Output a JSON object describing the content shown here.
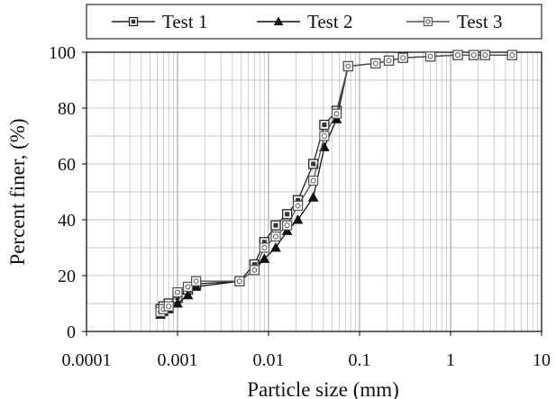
{
  "chart_data": {
    "type": "scatter",
    "title": "",
    "xlabel": "Particle size (mm)",
    "ylabel": "Percent finer, (%)",
    "x_scale": "log",
    "xlim": [
      0.0001,
      10
    ],
    "ylim": [
      0,
      100
    ],
    "x_ticks": [
      "0.0001",
      "0.001",
      "0.01",
      "0.1",
      "1",
      "10"
    ],
    "y_ticks": [
      "0",
      "20",
      "40",
      "60",
      "80",
      "100"
    ],
    "grid": true,
    "legend_position": "top",
    "series": [
      {
        "name": "Test 1",
        "marker": "square",
        "x": [
          0.00065,
          0.0007,
          0.0008,
          0.001,
          0.0013,
          0.0016,
          0.0048,
          0.007,
          0.009,
          0.012,
          0.016,
          0.021,
          0.031,
          0.041,
          0.056,
          0.075,
          0.15,
          0.21,
          0.3,
          0.6,
          1.2,
          1.8,
          2.4,
          4.75
        ],
        "y": [
          8,
          9,
          10,
          12,
          15,
          17,
          18,
          24,
          32,
          38,
          42,
          47,
          60,
          74,
          79,
          95,
          96,
          97,
          98,
          98.5,
          99,
          99,
          99,
          99
        ]
      },
      {
        "name": "Test 2",
        "marker": "triangle",
        "x": [
          0.00065,
          0.0007,
          0.0008,
          0.001,
          0.0013,
          0.0016,
          0.0048,
          0.007,
          0.009,
          0.012,
          0.016,
          0.021,
          0.031,
          0.041,
          0.056,
          0.075,
          0.15,
          0.21,
          0.3,
          0.6,
          1.2,
          1.8,
          2.4,
          4.75
        ],
        "y": [
          6,
          7,
          8,
          10,
          13,
          16,
          18,
          22,
          26,
          30,
          36,
          40,
          48,
          66,
          76,
          95,
          96,
          97,
          98,
          98.5,
          99,
          99,
          99,
          99
        ]
      },
      {
        "name": "Test 3",
        "marker": "circle-square",
        "x": [
          0.00065,
          0.0007,
          0.0008,
          0.001,
          0.0013,
          0.0016,
          0.0048,
          0.007,
          0.009,
          0.012,
          0.016,
          0.021,
          0.031,
          0.041,
          0.056,
          0.075,
          0.15,
          0.21,
          0.3,
          0.6,
          1.2,
          1.8,
          2.4,
          4.75
        ],
        "y": [
          7,
          8,
          9,
          14,
          16,
          18,
          18,
          22,
          30,
          34,
          38,
          45,
          54,
          70,
          78,
          95,
          96,
          97,
          98,
          98.5,
          99,
          99,
          99,
          99
        ]
      }
    ]
  }
}
